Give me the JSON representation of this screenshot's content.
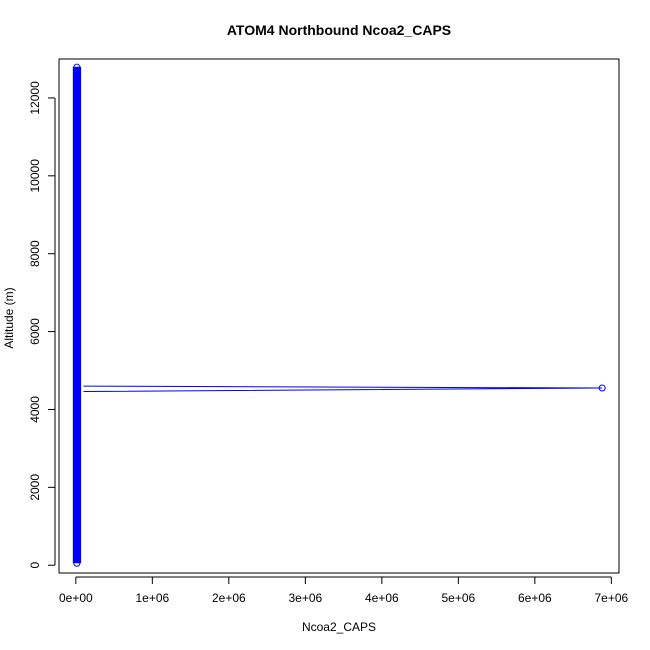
{
  "chart_data": {
    "type": "scatter",
    "title": "ATOM4 Northbound Ncoa2_CAPS",
    "xlabel": "Ncoa2_CAPS",
    "ylabel": "Altitude (m)",
    "xlim": [
      -220000,
      7100000
    ],
    "ylim": [
      -200,
      13000
    ],
    "x_ticks": [
      0,
      1000000,
      2000000,
      3000000,
      4000000,
      5000000,
      6000000,
      7000000
    ],
    "x_tick_labels": [
      "0e+00",
      "1e+06",
      "2e+06",
      "3e+06",
      "4e+06",
      "5e+06",
      "6e+06",
      "7e+06"
    ],
    "y_ticks": [
      0,
      2000,
      4000,
      6000,
      8000,
      10000,
      12000
    ],
    "y_tick_labels": [
      "0",
      "2000",
      "4000",
      "6000",
      "8000",
      "10000",
      "12000"
    ],
    "grid": false,
    "legend": "none",
    "series": [
      {
        "color": "#0000ff",
        "x_range_cluster": [
          0,
          30000
        ],
        "y_range_cluster": [
          50,
          12800
        ],
        "outlier": {
          "x": 6880000,
          "y": 4550
        },
        "line_to_outlier": [
          {
            "x": 100000,
            "y": 4600
          },
          {
            "x": 6880000,
            "y": 4550
          },
          {
            "x": 100000,
            "y": 4460
          }
        ]
      }
    ]
  }
}
